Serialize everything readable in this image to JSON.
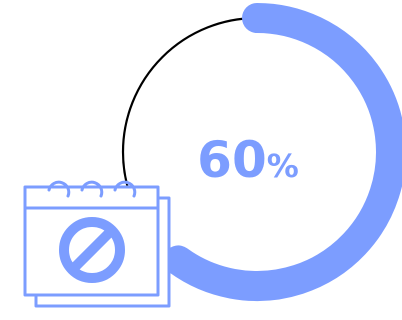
{
  "progress": {
    "value": 60,
    "number_text": "60",
    "unit_text": "%",
    "track_color": "#000000",
    "fill_color": "#7c9dff"
  },
  "calendar_icon": {
    "icon": "calendar-blocked-icon",
    "line_color": "#7c9dff"
  }
}
